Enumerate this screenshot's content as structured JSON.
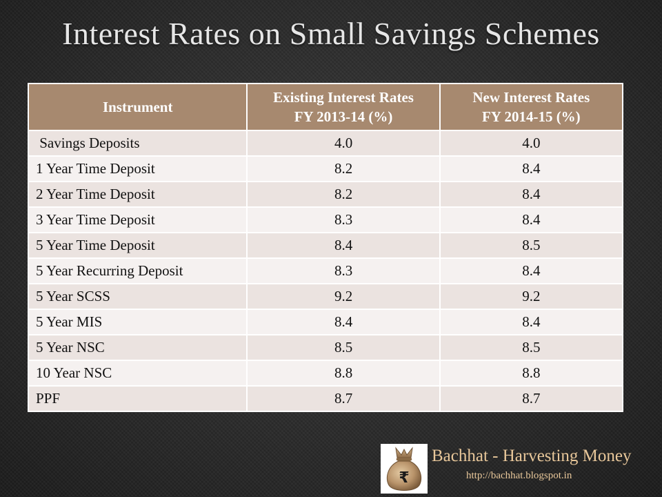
{
  "title": "Interest Rates on Small Savings Schemes",
  "table": {
    "headers": {
      "instrument": "Instrument",
      "existing_line1": "Existing Interest Rates",
      "existing_line2": "FY 2013-14 (%)",
      "new_line1": "New Interest Rates",
      "new_line2": "FY 2014-15 (%)"
    },
    "rows": [
      {
        "instrument": " Savings Deposits",
        "existing": "4.0",
        "new": "4.0"
      },
      {
        "instrument": "1 Year Time Deposit",
        "existing": "8.2",
        "new": "8.4"
      },
      {
        "instrument": "2 Year Time Deposit",
        "existing": "8.2",
        "new": "8.4"
      },
      {
        "instrument": "3 Year Time Deposit",
        "existing": "8.3",
        "new": "8.4"
      },
      {
        "instrument": "5 Year Time Deposit",
        "existing": "8.4",
        "new": "8.5"
      },
      {
        "instrument": "5 Year Recurring Deposit",
        "existing": "8.3",
        "new": "8.4"
      },
      {
        "instrument": "5 Year SCSS",
        "existing": "9.2",
        "new": "9.2"
      },
      {
        "instrument": "5 Year MIS",
        "existing": "8.4",
        "new": "8.4"
      },
      {
        "instrument": "5 Year NSC",
        "existing": "8.5",
        "new": "8.5"
      },
      {
        "instrument": "10 Year NSC",
        "existing": "8.8",
        "new": "8.8"
      },
      {
        "instrument": "PPF",
        "existing": "8.7",
        "new": "8.7"
      }
    ]
  },
  "brand": {
    "name": "Bachhat - Harvesting Money",
    "url": "http://bachhat.blogspot.in",
    "logo_icon": "money-bag-rupee-icon",
    "logo_symbol": "₹"
  },
  "colors": {
    "header_bg": "#a7896f",
    "row_odd": "#ebe3e0",
    "row_even": "#f5f1f0",
    "brand_text": "#e8c79a"
  }
}
